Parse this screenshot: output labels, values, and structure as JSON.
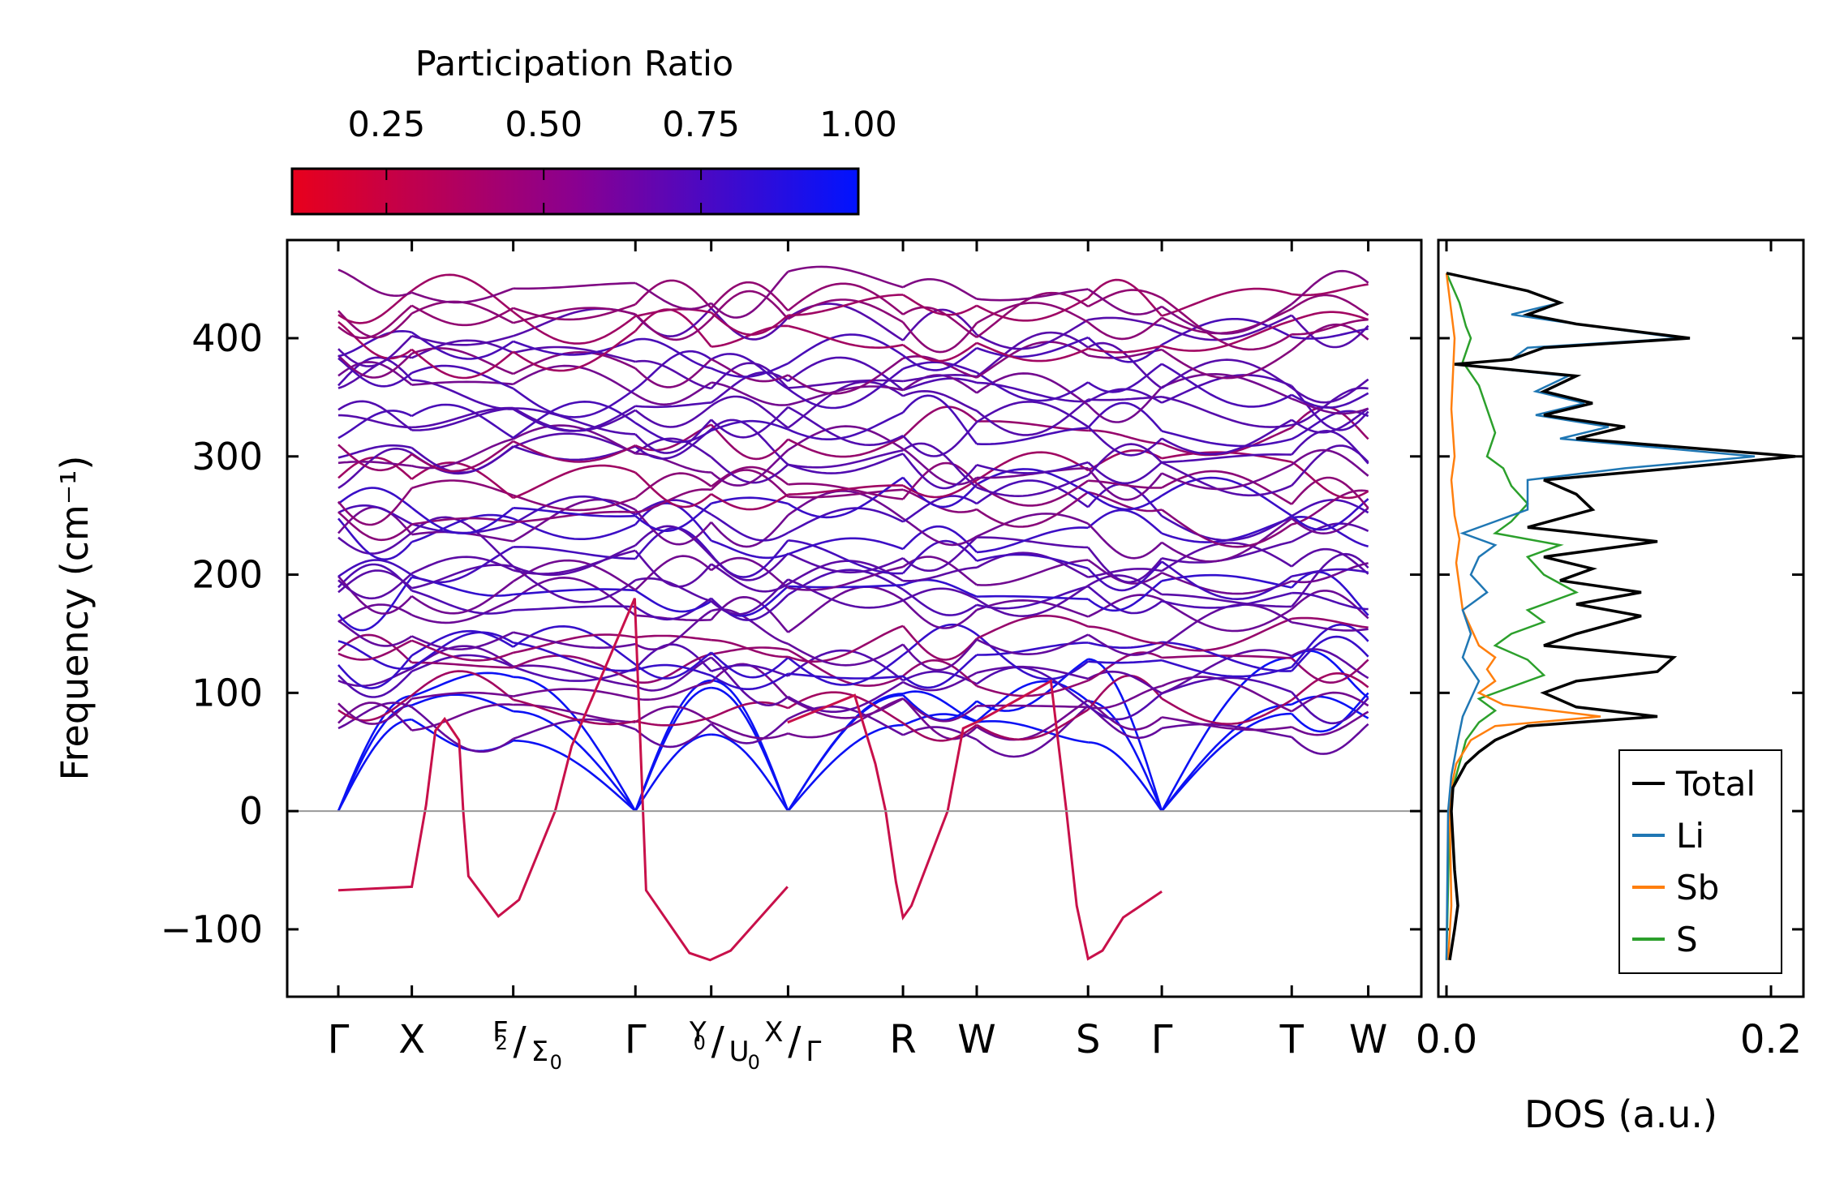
{
  "chart_data": [
    {
      "type": "line",
      "subtype": "phonon-band-structure",
      "ylabel": "Frequency (cm⁻¹)",
      "ylim": [
        -157,
        483
      ],
      "yticks": [
        -100,
        0,
        100,
        200,
        300,
        400
      ],
      "ytick_labels": [
        "−100",
        "0",
        "100",
        "200",
        "300",
        "400"
      ],
      "zero_line": true,
      "kpoint_positions": [
        0,
        0.0712,
        0.1694,
        0.2877,
        0.3611,
        0.4355,
        0.5468,
        0.6182,
        0.726,
        0.7974,
        0.9232,
        0.9973
      ],
      "kpoint_labels": [
        {
          "main": "Γ"
        },
        {
          "main": "X"
        },
        {
          "pre": "F",
          "pre_sub": "2",
          "post": "Σ",
          "post_sub": "0"
        },
        {
          "main": "Γ"
        },
        {
          "pre": "Y",
          "pre_sub": "0",
          "post": "U",
          "post_sub": "0"
        },
        {
          "pre": "X",
          "pre_sub": "",
          "post": "Γ",
          "post_sub": ""
        },
        {
          "main": "R"
        },
        {
          "main": "W"
        },
        {
          "main": "S"
        },
        {
          "main": "Γ"
        },
        {
          "main": "T"
        },
        {
          "main": "W"
        }
      ],
      "segment_boundaries": [
        0,
        3,
        5,
        10,
        12
      ],
      "branch_count": 48,
      "imaginary_mode": {
        "points": [
          [
            0,
            -67
          ],
          [
            0.0712,
            -64
          ],
          [
            0.085,
            5
          ],
          [
            0.094,
            68
          ],
          [
            0.103,
            78
          ],
          [
            0.117,
            60
          ],
          [
            0.121,
            0
          ],
          [
            0.126,
            -55
          ],
          [
            0.155,
            -89
          ],
          [
            0.175,
            -75
          ],
          [
            0.21,
            0
          ],
          [
            0.226,
            55
          ],
          [
            0.287,
            180
          ],
          [
            0.298,
            -67
          ],
          [
            0.34,
            -120
          ],
          [
            0.36,
            -126
          ],
          [
            0.38,
            -118
          ],
          [
            0.435,
            -64
          ],
          [
            0.435,
            75
          ],
          [
            0.5,
            98
          ],
          [
            0.52,
            40
          ],
          [
            0.53,
            0
          ],
          [
            0.54,
            -60
          ],
          [
            0.5468,
            -90
          ],
          [
            0.555,
            -80
          ],
          [
            0.59,
            0
          ],
          [
            0.605,
            70
          ],
          [
            0.62,
            76
          ],
          [
            0.69,
            110
          ],
          [
            0.705,
            0
          ],
          [
            0.715,
            -80
          ],
          [
            0.726,
            -125
          ],
          [
            0.74,
            -118
          ],
          [
            0.76,
            -90
          ],
          [
            0.7974,
            -68
          ]
        ]
      },
      "colorbar": {
        "label": "Participation Ratio",
        "ticks": [
          0.25,
          0.5,
          0.75,
          1.0
        ],
        "tick_labels": [
          "0.25",
          "0.50",
          "0.75",
          "1.00"
        ],
        "range": [
          0.1,
          1.0
        ],
        "color_low": "#e8001c",
        "color_high": "#0013ff"
      }
    },
    {
      "type": "line",
      "subtype": "density-of-states",
      "xlabel": "DOS (a.u.)",
      "xlim": [
        -0.005,
        0.22
      ],
      "xticks": [
        0.0,
        0.2
      ],
      "xtick_labels": [
        "0.0",
        "0.2"
      ],
      "ylim": [
        -157,
        483
      ],
      "legend_position": "bottom-right",
      "series": [
        {
          "name": "Total",
          "color": "#000000",
          "points": [
            [
              455,
              0.0
            ],
            [
              440,
              0.05
            ],
            [
              430,
              0.07
            ],
            [
              420,
              0.05
            ],
            [
              412,
              0.08
            ],
            [
              400,
              0.15
            ],
            [
              392,
              0.06
            ],
            [
              382,
              0.04
            ],
            [
              378,
              0.005
            ],
            [
              368,
              0.08
            ],
            [
              355,
              0.06
            ],
            [
              345,
              0.09
            ],
            [
              335,
              0.06
            ],
            [
              325,
              0.11
            ],
            [
              315,
              0.08
            ],
            [
              300,
              0.215
            ],
            [
              290,
              0.14
            ],
            [
              280,
              0.06
            ],
            [
              268,
              0.08
            ],
            [
              255,
              0.09
            ],
            [
              240,
              0.05
            ],
            [
              228,
              0.13
            ],
            [
              215,
              0.06
            ],
            [
              205,
              0.09
            ],
            [
              195,
              0.07
            ],
            [
              185,
              0.12
            ],
            [
              175,
              0.08
            ],
            [
              165,
              0.12
            ],
            [
              150,
              0.08
            ],
            [
              140,
              0.06
            ],
            [
              130,
              0.14
            ],
            [
              118,
              0.13
            ],
            [
              110,
              0.08
            ],
            [
              100,
              0.06
            ],
            [
              88,
              0.08
            ],
            [
              80,
              0.13
            ],
            [
              72,
              0.05
            ],
            [
              60,
              0.03
            ],
            [
              50,
              0.02
            ],
            [
              40,
              0.012
            ],
            [
              20,
              0.004
            ],
            [
              0,
              0.003
            ],
            [
              -50,
              0.005
            ],
            [
              -80,
              0.007
            ],
            [
              -100,
              0.005
            ],
            [
              -126,
              0.002
            ]
          ]
        },
        {
          "name": "Li",
          "color": "#1f77b4",
          "points": [
            [
              455,
              0.0
            ],
            [
              440,
              0.05
            ],
            [
              430,
              0.07
            ],
            [
              420,
              0.04
            ],
            [
              412,
              0.08
            ],
            [
              400,
              0.145
            ],
            [
              392,
              0.05
            ],
            [
              382,
              0.04
            ],
            [
              378,
              0.005
            ],
            [
              368,
              0.075
            ],
            [
              355,
              0.055
            ],
            [
              345,
              0.085
            ],
            [
              335,
              0.055
            ],
            [
              325,
              0.1
            ],
            [
              315,
              0.07
            ],
            [
              300,
              0.19
            ],
            [
              290,
              0.11
            ],
            [
              280,
              0.05
            ],
            [
              268,
              0.05
            ],
            [
              255,
              0.05
            ],
            [
              245,
              0.03
            ],
            [
              235,
              0.01
            ],
            [
              225,
              0.03
            ],
            [
              215,
              0.02
            ],
            [
              200,
              0.015
            ],
            [
              185,
              0.025
            ],
            [
              170,
              0.01
            ],
            [
              150,
              0.015
            ],
            [
              130,
              0.01
            ],
            [
              110,
              0.02
            ],
            [
              95,
              0.015
            ],
            [
              80,
              0.01
            ],
            [
              60,
              0.007
            ],
            [
              30,
              0.003
            ],
            [
              0,
              0.001
            ],
            [
              -126,
              0.0
            ]
          ]
        },
        {
          "name": "Sb",
          "color": "#ff7f0e",
          "points": [
            [
              455,
              0.0
            ],
            [
              400,
              0.005
            ],
            [
              340,
              0.003
            ],
            [
              300,
              0.005
            ],
            [
              280,
              0.003
            ],
            [
              250,
              0.005
            ],
            [
              230,
              0.008
            ],
            [
              210,
              0.006
            ],
            [
              190,
              0.008
            ],
            [
              170,
              0.01
            ],
            [
              155,
              0.015
            ],
            [
              140,
              0.02
            ],
            [
              130,
              0.03
            ],
            [
              120,
              0.025
            ],
            [
              110,
              0.03
            ],
            [
              100,
              0.02
            ],
            [
              90,
              0.035
            ],
            [
              80,
              0.095
            ],
            [
              72,
              0.03
            ],
            [
              60,
              0.015
            ],
            [
              40,
              0.006
            ],
            [
              20,
              0.003
            ],
            [
              0,
              0.002
            ],
            [
              -80,
              0.003
            ],
            [
              -126,
              0.001
            ]
          ]
        },
        {
          "name": "S",
          "color": "#2ca02c",
          "points": [
            [
              455,
              0.0
            ],
            [
              430,
              0.008
            ],
            [
              410,
              0.012
            ],
            [
              400,
              0.015
            ],
            [
              380,
              0.01
            ],
            [
              360,
              0.02
            ],
            [
              340,
              0.025
            ],
            [
              320,
              0.03
            ],
            [
              300,
              0.025
            ],
            [
              290,
              0.035
            ],
            [
              275,
              0.04
            ],
            [
              260,
              0.05
            ],
            [
              245,
              0.04
            ],
            [
              235,
              0.03
            ],
            [
              225,
              0.07
            ],
            [
              215,
              0.05
            ],
            [
              200,
              0.06
            ],
            [
              185,
              0.08
            ],
            [
              170,
              0.05
            ],
            [
              160,
              0.06
            ],
            [
              150,
              0.04
            ],
            [
              140,
              0.03
            ],
            [
              128,
              0.05
            ],
            [
              115,
              0.06
            ],
            [
              105,
              0.04
            ],
            [
              95,
              0.02
            ],
            [
              85,
              0.03
            ],
            [
              75,
              0.02
            ],
            [
              60,
              0.012
            ],
            [
              40,
              0.008
            ],
            [
              20,
              0.004
            ],
            [
              0,
              0.002
            ],
            [
              -126,
              0.0
            ]
          ]
        }
      ]
    }
  ]
}
